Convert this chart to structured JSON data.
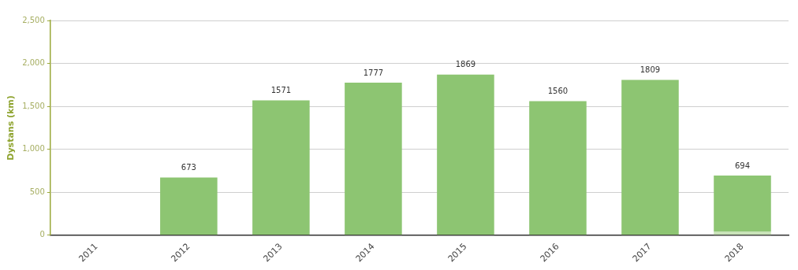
{
  "chart_data": {
    "type": "bar",
    "ylabel": "Dystans (km)",
    "categories": [
      "2011",
      "2012",
      "2013",
      "2014",
      "2015",
      "2016",
      "2017",
      "2018"
    ],
    "stacked": true,
    "series": [
      {
        "color": "#c9e3b8",
        "values": [
          null,
          null,
          null,
          null,
          null,
          null,
          null,
          40
        ]
      },
      {
        "color": "#8dc572",
        "values": [
          0,
          673,
          1571,
          1777,
          1869,
          1560,
          1809,
          654
        ]
      }
    ],
    "totals": [
      null,
      "673",
      "1571",
      "1777",
      "1869",
      "1560",
      "1809",
      "694"
    ],
    "ylim": [
      0,
      2500
    ],
    "yticks": [
      {
        "value": 0,
        "label": "0"
      },
      {
        "value": 500,
        "label": "500"
      },
      {
        "value": 1000,
        "label": "1,000"
      },
      {
        "value": 1500,
        "label": "1,500"
      },
      {
        "value": 2000,
        "label": "2,000"
      },
      {
        "value": 2500,
        "label": "2,500"
      }
    ],
    "grid": "y",
    "legend": false
  }
}
